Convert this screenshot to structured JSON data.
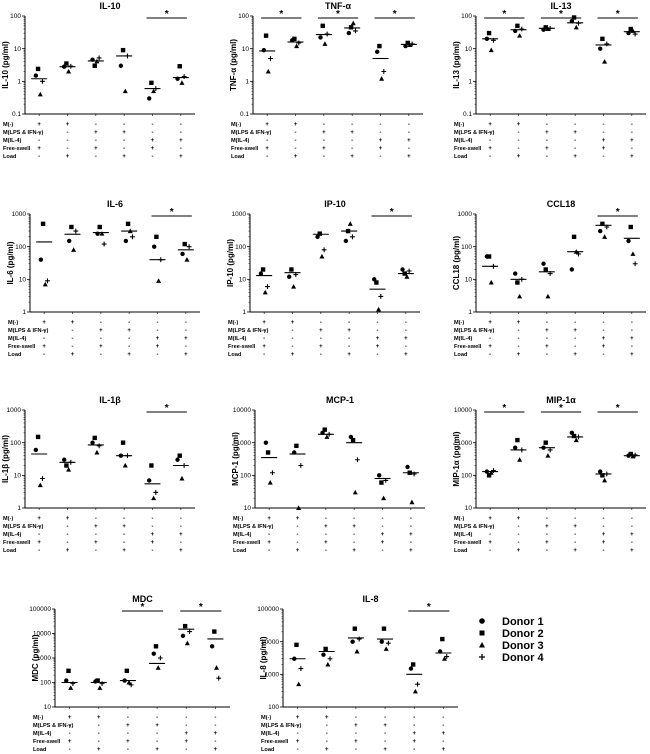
{
  "row_labels": [
    "M(-)",
    "M(LPS & IFN-γ)",
    "M(IL-4)",
    "Free-swell",
    "Load"
  ],
  "conditions": [
    [
      "+",
      "-",
      "-",
      "+",
      "-"
    ],
    [
      "+",
      "-",
      "-",
      "-",
      "+"
    ],
    [
      "-",
      "+",
      "-",
      "+",
      "-"
    ],
    [
      "-",
      "+",
      "-",
      "-",
      "+"
    ],
    [
      "-",
      "-",
      "+",
      "+",
      "-"
    ],
    [
      "-",
      "-",
      "+",
      "-",
      "+"
    ]
  ],
  "star_symbol": "*",
  "legend": {
    "items": [
      {
        "label": "Donor 1",
        "marker": "circle"
      },
      {
        "label": "Donor 2",
        "marker": "square"
      },
      {
        "label": "Donor 3",
        "marker": "triangle"
      },
      {
        "label": "Donor 4",
        "marker": "plus"
      }
    ]
  },
  "chart_data": [
    {
      "type": "scatter",
      "yscale": "log",
      "title": "IL-10",
      "ylabel": "IL-10 (pg/ml)",
      "ylim": [
        0.1,
        100
      ],
      "yticks": [
        "0.1",
        "1",
        "10",
        "100"
      ],
      "values": [
        [
          1.5,
          2.4,
          0.4,
          1.0
        ],
        [
          2.8,
          3.5,
          2.0,
          2.9
        ],
        [
          4.6,
          3.0,
          4.1,
          5.2
        ],
        [
          3.0,
          9.0,
          0.5,
          6.0
        ],
        [
          0.3,
          0.9,
          0.5,
          0.6
        ],
        [
          1.2,
          2.9,
          0.9,
          1.4
        ]
      ],
      "means": [
        1.2,
        2.8,
        4.2,
        6.0,
        0.6,
        1.3
      ],
      "sig": [
        [
          4,
          5
        ]
      ]
    },
    {
      "type": "scatter",
      "yscale": "log",
      "title": "TNF-α",
      "ylabel": "TNF-α (pg/ml)",
      "ylim": [
        0.1,
        100
      ],
      "yticks": [
        "0.1",
        "1",
        "10",
        "100"
      ],
      "values": [
        [
          9.0,
          25.0,
          2.0,
          5.0
        ],
        [
          18.0,
          20.0,
          12.0,
          15.0
        ],
        [
          22.0,
          50.0,
          14.0,
          28.0
        ],
        [
          30.0,
          45.0,
          60.0,
          35.0
        ],
        [
          8.0,
          12.0,
          1.2,
          2.0
        ],
        [
          12.0,
          15.0,
          13.0,
          14.0
        ]
      ],
      "means": [
        8.5,
        16.0,
        27.0,
        43.0,
        5.0,
        13.5
      ],
      "sig": [
        [
          0,
          1
        ],
        [
          2,
          3
        ],
        [
          4,
          5
        ]
      ]
    },
    {
      "type": "scatter",
      "yscale": "log",
      "title": "IL-13",
      "ylabel": "IL-13 (pg/ml)",
      "ylim": [
        0.1,
        100
      ],
      "yticks": [
        "0.1",
        "1",
        "10",
        "100"
      ],
      "values": [
        [
          20.0,
          30.0,
          9.0,
          18.0
        ],
        [
          35.0,
          50.0,
          25.0,
          40.0
        ],
        [
          38.0,
          45.0,
          40.0,
          42.0
        ],
        [
          70.0,
          90.0,
          45.0,
          60.0
        ],
        [
          10.0,
          20.0,
          4.0,
          14.0
        ],
        [
          30.0,
          40.0,
          35.0,
          28.0
        ]
      ],
      "means": [
        20.0,
        38.0,
        42.0,
        62.0,
        13.0,
        33.0
      ],
      "sig": [
        [
          0,
          1
        ],
        [
          2,
          3
        ],
        [
          4,
          5
        ]
      ]
    },
    {
      "type": "scatter",
      "yscale": "log",
      "title": "IL-6",
      "ylabel": "IL-6 (pg/ml)",
      "ylim": [
        1,
        1000
      ],
      "yticks": [
        "1",
        "10",
        "100",
        "1000"
      ],
      "values": [
        [
          40,
          500,
          7,
          9
        ],
        [
          150,
          400,
          80,
          300
        ],
        [
          250,
          400,
          250,
          120
        ],
        [
          150,
          500,
          300,
          200
        ],
        [
          100,
          200,
          9,
          40
        ],
        [
          60,
          120,
          40,
          100
        ]
      ],
      "means": [
        140,
        240,
        270,
        300,
        40,
        80
      ],
      "sig": [
        [
          4,
          5
        ]
      ]
    },
    {
      "type": "scatter",
      "yscale": "log",
      "title": "IP-10",
      "ylabel": "IP-10 (pg/ml)",
      "ylim": [
        1,
        1000
      ],
      "yticks": [
        "1",
        "10",
        "100",
        "1000"
      ],
      "values": [
        [
          15,
          20,
          4,
          6
        ],
        [
          12,
          20,
          6,
          14
        ],
        [
          200,
          250,
          50,
          80
        ],
        [
          150,
          300,
          500,
          200
        ],
        [
          10,
          8,
          1.2,
          3
        ],
        [
          20,
          15,
          12,
          18
        ]
      ],
      "means": [
        13,
        16,
        240,
        300,
        5,
        15
      ],
      "sig": [
        [
          4,
          5
        ]
      ]
    },
    {
      "type": "scatter",
      "yscale": "log",
      "title": "CCL18",
      "ylabel": "CCL18 (pg/ml)",
      "ylim": [
        1,
        1000
      ],
      "yticks": [
        "1",
        "10",
        "100",
        "1000"
      ],
      "values": [
        [
          50,
          50,
          8,
          25
        ],
        [
          15,
          8,
          3,
          10
        ],
        [
          30,
          20,
          3,
          15
        ],
        [
          20,
          200,
          70,
          60
        ],
        [
          300,
          500,
          200,
          400
        ],
        [
          150,
          400,
          60,
          30
        ]
      ],
      "means": [
        25,
        10,
        17,
        70,
        450,
        180
      ],
      "sig": [
        [
          4,
          5
        ]
      ]
    },
    {
      "type": "scatter",
      "yscale": "log",
      "title": "IL-1β",
      "ylabel": "IL-1β (pg/ml)",
      "ylim": [
        1,
        1000
      ],
      "yticks": [
        "1",
        "10",
        "100",
        "1000"
      ],
      "values": [
        [
          60,
          150,
          5,
          8
        ],
        [
          30,
          20,
          15,
          25
        ],
        [
          100,
          140,
          50,
          80
        ],
        [
          40,
          100,
          20,
          40
        ],
        [
          7,
          20,
          2,
          3
        ],
        [
          30,
          40,
          8,
          20
        ]
      ],
      "means": [
        45,
        25,
        85,
        40,
        5.5,
        20
      ],
      "sig": [
        [
          4,
          5
        ]
      ]
    },
    {
      "type": "scatter",
      "yscale": "log",
      "title": "MCP-1",
      "ylabel": "MCP-1 (pg/ml)",
      "ylim": [
        10,
        10000
      ],
      "yticks": [
        "10",
        "100",
        "1000",
        "10000"
      ],
      "values": [
        [
          1000,
          500,
          60,
          120
        ],
        [
          500,
          800,
          10,
          200
        ],
        [
          2000,
          2500,
          1500,
          1800
        ],
        [
          1500,
          1200,
          30,
          300
        ],
        [
          100,
          60,
          20,
          70
        ],
        [
          180,
          120,
          15,
          110
        ]
      ],
      "means": [
        350,
        450,
        1800,
        1000,
        80,
        120
      ],
      "sig": []
    },
    {
      "type": "scatter",
      "yscale": "log",
      "title": "MIP-1α",
      "ylabel": "MIP-1α (pg/ml)",
      "ylim": [
        10,
        10000
      ],
      "yticks": [
        "10",
        "100",
        "1000",
        "10000"
      ],
      "values": [
        [
          130,
          100,
          120,
          140
        ],
        [
          700,
          1200,
          300,
          600
        ],
        [
          700,
          1000,
          400,
          600
        ],
        [
          2000,
          1600,
          1200,
          1500
        ],
        [
          130,
          100,
          70,
          110
        ],
        [
          400,
          450,
          380,
          420
        ]
      ],
      "means": [
        130,
        600,
        700,
        1500,
        110,
        400
      ],
      "sig": [
        [
          0,
          1
        ],
        [
          2,
          3
        ],
        [
          4,
          5
        ]
      ]
    },
    {
      "type": "scatter",
      "yscale": "log",
      "title": "MDC",
      "ylabel": "MDC (pg/ml)",
      "ylim": [
        10,
        100000
      ],
      "yticks": [
        "10",
        "100",
        "1000",
        "10000",
        "100000"
      ],
      "values": [
        [
          120,
          300,
          60,
          90
        ],
        [
          110,
          120,
          60,
          90
        ],
        [
          120,
          300,
          100,
          80
        ],
        [
          1500,
          3000,
          400,
          1000
        ],
        [
          8000,
          20000,
          4000,
          12000
        ],
        [
          3000,
          12000,
          400,
          150
        ]
      ],
      "means": [
        100,
        100,
        120,
        600,
        15000,
        6000
      ],
      "sig": [
        [
          2,
          3
        ],
        [
          4,
          5
        ]
      ]
    },
    {
      "type": "scatter",
      "yscale": "log",
      "title": "IL-8",
      "ylabel": "IL-8 (pg/ml)",
      "ylim": [
        100,
        100000
      ],
      "yticks": [
        "100",
        "1000",
        "10000",
        "100000"
      ],
      "values": [
        [
          3000,
          8000,
          500,
          1500
        ],
        [
          4000,
          6000,
          2000,
          3000
        ],
        [
          10000,
          25000,
          5000,
          12000
        ],
        [
          10000,
          25000,
          6000,
          9000
        ],
        [
          1500,
          2000,
          300,
          500
        ],
        [
          5000,
          12000,
          3000,
          3500
        ]
      ],
      "means": [
        3000,
        5000,
        13000,
        12000,
        1000,
        4500
      ],
      "sig": [
        [
          4,
          5
        ]
      ]
    }
  ]
}
